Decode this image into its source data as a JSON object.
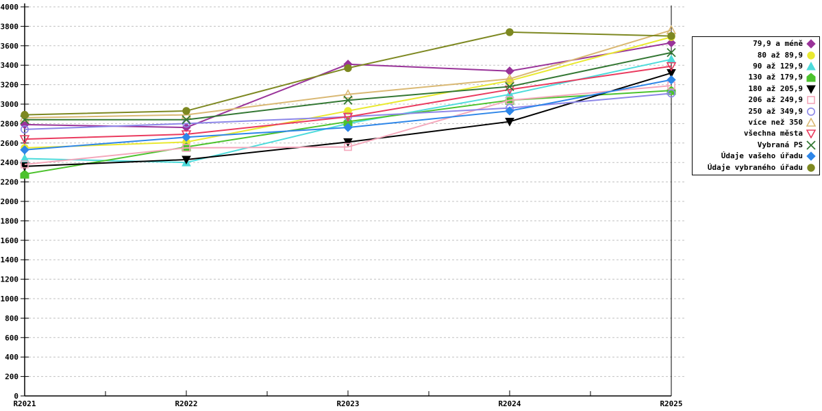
{
  "page": {
    "background": "#ffffff"
  },
  "chart_data": {
    "type": "line",
    "title": "",
    "xlabel": "",
    "ylabel": "",
    "x_labels": [
      "R2021",
      "R2022",
      "R2023",
      "R2024",
      "R2025"
    ],
    "ylim": [
      0,
      4000
    ],
    "y_tick_step": 200,
    "y_tick_labels": [
      "0",
      "200",
      "400",
      "600",
      "800",
      "1000",
      "1200",
      "1400",
      "1600",
      "1800",
      "2000",
      "2200",
      "2400",
      "2600",
      "2800",
      "3000",
      "3200",
      "3400",
      "3600",
      "3800",
      "4000"
    ],
    "grid": "horizontal-dashed",
    "grid_color": "#c0c0c0",
    "axis_color": "#000000",
    "legend_position": "right",
    "current_period_line_x": "R2025",
    "series": [
      {
        "name": "79,9 a méně",
        "color": "#993399",
        "marker": "diamond",
        "fill": true,
        "values": [
          2790,
          2760,
          3410,
          3340,
          3630
        ]
      },
      {
        "name": "80 až 89,9",
        "color": "#e9e930",
        "marker": "circle",
        "fill": true,
        "values": [
          2550,
          2610,
          2930,
          3240,
          3690
        ]
      },
      {
        "name": "90 až 129,9",
        "color": "#4ddbdb",
        "marker": "triangle-up",
        "fill": true,
        "values": [
          2440,
          2400,
          2800,
          3100,
          3460
        ]
      },
      {
        "name": "130 až 179,9",
        "color": "#4cc22d",
        "marker": "pentagon",
        "fill": true,
        "values": [
          2280,
          2560,
          2820,
          3040,
          3140
        ]
      },
      {
        "name": "180 až 205,9",
        "color": "#000000",
        "marker": "triangle-down",
        "fill": true,
        "values": [
          2360,
          2430,
          2610,
          2820,
          3320
        ]
      },
      {
        "name": "206 až 249,9",
        "color": "#f4a7bb",
        "marker": "square",
        "fill": false,
        "values": [
          2380,
          2550,
          2560,
          3040,
          3190
        ]
      },
      {
        "name": "250 až 349,9",
        "color": "#8c86e8",
        "marker": "circle",
        "fill": false,
        "values": [
          2740,
          2800,
          2870,
          2960,
          3110
        ]
      },
      {
        "name": "více než 350",
        "color": "#d9b873",
        "marker": "triangle-up",
        "fill": false,
        "values": [
          2860,
          2890,
          3100,
          3260,
          3760
        ]
      },
      {
        "name": "všechna města",
        "color": "#ea3a5e",
        "marker": "triangle-down",
        "fill": false,
        "values": [
          2640,
          2690,
          2870,
          3150,
          3390
        ]
      },
      {
        "name": "Vybraná PS",
        "color": "#337733",
        "marker": "x",
        "fill": false,
        "values": [
          2840,
          2840,
          3040,
          3180,
          3530
        ]
      },
      {
        "name": "Údaje vašeho úřadu",
        "color": "#2e86e8",
        "marker": "diamond",
        "fill": true,
        "values": [
          2530,
          2660,
          2760,
          2930,
          3250
        ]
      },
      {
        "name": "Údaje vybraného úřadu",
        "color": "#7d8821",
        "marker": "circle",
        "fill": true,
        "values": [
          2890,
          2930,
          3370,
          3740,
          3700
        ]
      }
    ]
  }
}
